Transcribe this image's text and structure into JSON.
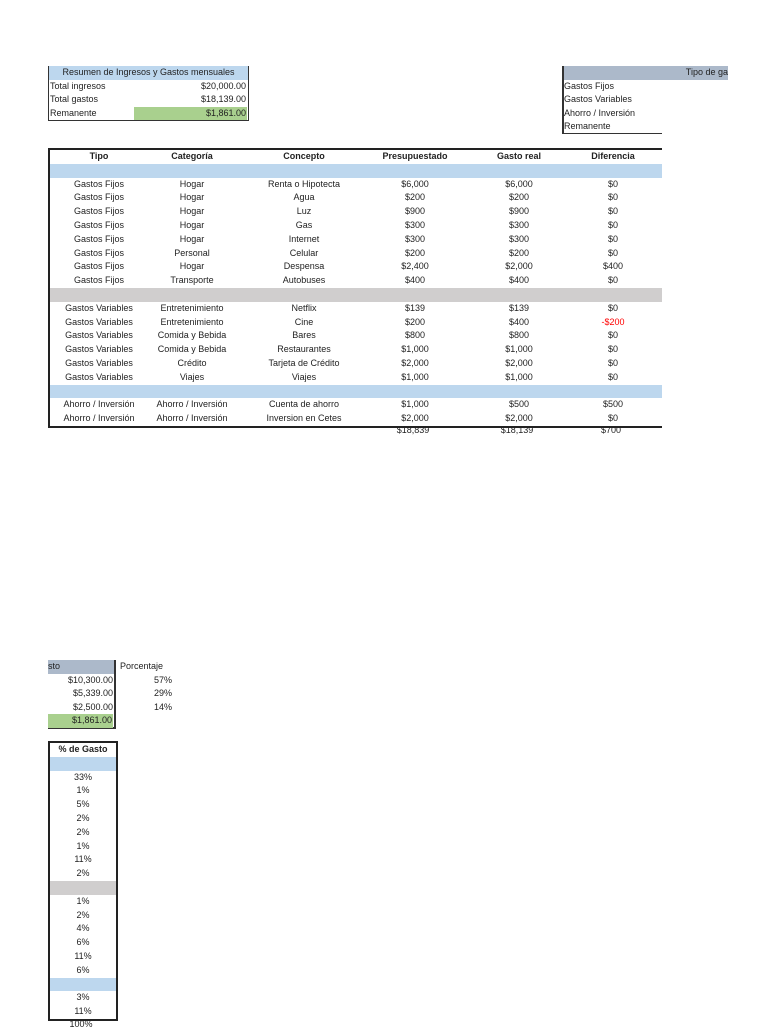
{
  "summary": {
    "title": "Resumen de Ingresos y Gastos mensuales",
    "rows": [
      {
        "label": "Total ingresos",
        "value": "$20,000.00"
      },
      {
        "label": "Total gastos",
        "value": "$18,139.00"
      },
      {
        "label": "Remanente",
        "value": "$1,861.00"
      }
    ]
  },
  "tipo_gasto": {
    "header": "Tipo de ga",
    "header_continued": "sto",
    "rows": [
      {
        "label": "Gastos Fijos",
        "value": "$10,300.00",
        "percent": "57%"
      },
      {
        "label": "Gastos Variables",
        "value": "$5,339.00",
        "percent": "29%"
      },
      {
        "label": "Ahorro / Inversión",
        "value": "$2,500.00",
        "percent": "14%"
      },
      {
        "label": "Remanente",
        "value": "$1,861.00",
        "percent": ""
      }
    ],
    "percent_header": "Porcentaje"
  },
  "main_table": {
    "headers": [
      "Tipo",
      "Categoría",
      "Concepto",
      "Presupuestado",
      "Gasto real",
      "Diferencia"
    ],
    "groups": [
      {
        "band": "blue",
        "rows": [
          [
            "Gastos Fijos",
            "Hogar",
            "Renta o Hipotecta",
            "$6,000",
            "$6,000",
            "$0"
          ],
          [
            "Gastos Fijos",
            "Hogar",
            "Agua",
            "$200",
            "$200",
            "$0"
          ],
          [
            "Gastos Fijos",
            "Hogar",
            "Luz",
            "$900",
            "$900",
            "$0"
          ],
          [
            "Gastos Fijos",
            "Hogar",
            "Gas",
            "$300",
            "$300",
            "$0"
          ],
          [
            "Gastos Fijos",
            "Hogar",
            "Internet",
            "$300",
            "$300",
            "$0"
          ],
          [
            "Gastos Fijos",
            "Personal",
            "Celular",
            "$200",
            "$200",
            "$0"
          ],
          [
            "Gastos Fijos",
            "Hogar",
            "Despensa",
            "$2,400",
            "$2,000",
            "$400"
          ],
          [
            "Gastos Fijos",
            "Transporte",
            "Autobuses",
            "$400",
            "$400",
            "$0"
          ]
        ]
      },
      {
        "band": "gray",
        "rows": [
          [
            "Gastos Variables",
            "Entretenimiento",
            "Netflix",
            "$139",
            "$139",
            "$0"
          ],
          [
            "Gastos Variables",
            "Entretenimiento",
            "Cine",
            "$200",
            "$400",
            "-$200"
          ],
          [
            "Gastos Variables",
            "Comida y Bebida",
            "Bares",
            "$800",
            "$800",
            "$0"
          ],
          [
            "Gastos Variables",
            "Comida y Bebida",
            "Restaurantes",
            "$1,000",
            "$1,000",
            "$0"
          ],
          [
            "Gastos Variables",
            "Crédito",
            "Tarjeta de Crédito",
            "$2,000",
            "$2,000",
            "$0"
          ],
          [
            "Gastos Variables",
            "Viajes",
            "Viajes",
            "$1,000",
            "$1,000",
            "$0"
          ]
        ]
      },
      {
        "band": "blue",
        "rows": [
          [
            "Ahorro / Inversión",
            "Ahorro / Inversión",
            "Cuenta de ahorro",
            "$1,000",
            "$500",
            "$500"
          ],
          [
            "Ahorro / Inversión",
            "Ahorro / Inversión",
            "Inversion en Cetes",
            "$2,000",
            "$2,000",
            "$0"
          ]
        ]
      }
    ],
    "totals": [
      "$18,839",
      "$18,139",
      "$700"
    ],
    "negative_color": "#ff0000"
  },
  "percent_table": {
    "header": "% de Gasto",
    "groups": [
      [
        "33%",
        "1%",
        "5%",
        "2%",
        "2%",
        "1%",
        "11%",
        "2%"
      ],
      [
        "1%",
        "2%",
        "4%",
        "6%",
        "11%",
        "6%"
      ],
      [
        "3%",
        "11%"
      ]
    ],
    "total": "100%"
  },
  "colors": {
    "band_blue": "#bdd7ee",
    "band_gray": "#d0cece",
    "header_slate": "#acb9ca",
    "remanente_green": "#a9d08e"
  }
}
